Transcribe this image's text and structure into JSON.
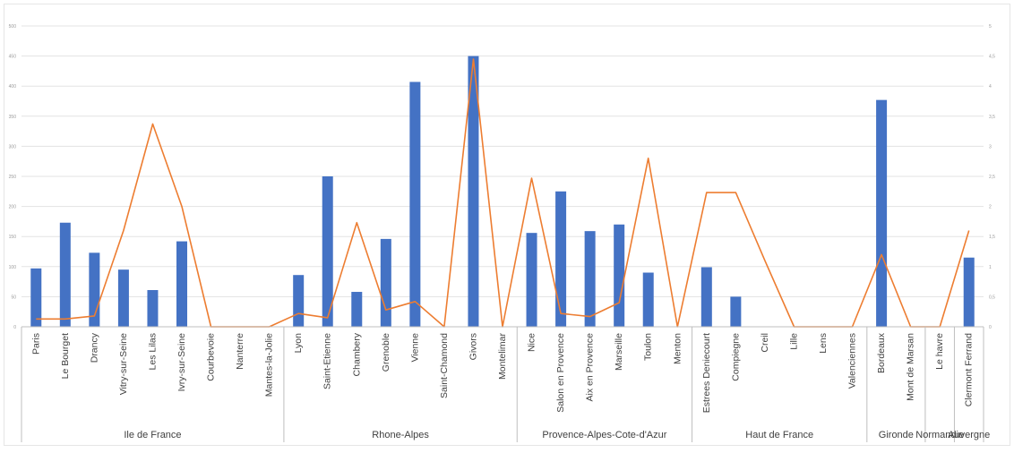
{
  "chart_data": {
    "type": "bar",
    "title": "",
    "xlabel": "",
    "ylabel": "",
    "ylim": [
      0,
      500
    ],
    "y2lim": [
      0,
      5
    ],
    "grid": true,
    "y_ticks": [
      "0",
      "50",
      "100",
      "150",
      "200",
      "250",
      "300",
      "350",
      "400",
      "450",
      "500"
    ],
    "y2_ticks": [
      "0",
      "0,5",
      "1",
      "1,5",
      "2",
      "2,5",
      "3",
      "3,5",
      "4",
      "4,5",
      "5"
    ],
    "categories": [
      "Paris",
      "Le Bourget",
      "Drancy",
      "Vitry-sur-Seine",
      "Les Lilas",
      "Ivry-sur-Seine",
      "Courbevoie",
      "Nanterre",
      "Mantes-la-Jolie",
      "Lyon",
      "Saint-Etienne",
      "Chambery",
      "Grenoble",
      "Vienne",
      "Saint-Chamond",
      "Givors",
      "Montelimar",
      "Nice",
      "Salon en Provence",
      "Aix en Provence",
      "Marseille",
      "Toulon",
      "Menton",
      "Estrees Deniecourt",
      "Compiegne",
      "Creil",
      "Lille",
      "Lens",
      "Valenciennes",
      "Bordeaux",
      "Mont de Marsan",
      "Le havre",
      "Clermont Ferrand"
    ],
    "groups": [
      {
        "label": "Ile de France",
        "count": 9
      },
      {
        "label": "Rhone-Alpes",
        "count": 8
      },
      {
        "label": "Provence-Alpes-Cote-d'Azur",
        "count": 6
      },
      {
        "label": "Haut de France",
        "count": 6
      },
      {
        "label": "Gironde",
        "count": 2
      },
      {
        "label": "Normandie",
        "count": 1
      },
      {
        "label": "Auvergne",
        "count": 1
      }
    ],
    "series": [
      {
        "type": "bar",
        "axis": "primary",
        "color": "#4472C4",
        "values": [
          97,
          173,
          123,
          95,
          61,
          142,
          0,
          0,
          0,
          86,
          250,
          58,
          146,
          407,
          0,
          450,
          0,
          156,
          225,
          159,
          170,
          90,
          0,
          99,
          50,
          0,
          0,
          0,
          0,
          377,
          0,
          0,
          115
        ]
      },
      {
        "type": "line",
        "axis": "secondary",
        "color": "#ED7D31",
        "values": [
          0.13,
          0.13,
          0.18,
          1.6,
          3.37,
          2.0,
          0,
          0,
          0,
          0.22,
          0.15,
          1.73,
          0.28,
          0.42,
          0,
          4.45,
          0,
          2.47,
          0.22,
          0.17,
          0.4,
          2.8,
          0,
          2.23,
          2.23,
          1.1,
          0,
          0,
          0,
          1.2,
          0,
          0,
          1.6
        ]
      }
    ]
  }
}
